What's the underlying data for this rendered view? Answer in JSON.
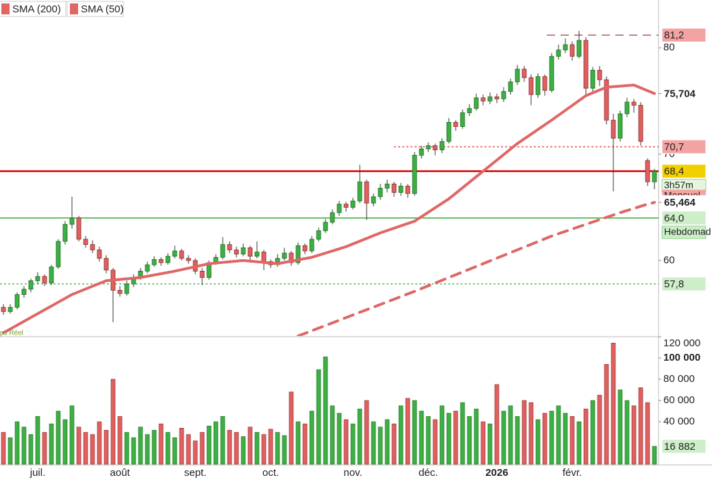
{
  "chart_data": {
    "type": "candlestick",
    "feed_label": "ps Réel",
    "categories": [
      null,
      null,
      null,
      null,
      null,
      "juil.",
      null,
      null,
      null,
      null,
      null,
      null,
      null,
      null,
      null,
      null,
      null,
      "août",
      null,
      null,
      null,
      null,
      null,
      null,
      null,
      null,
      null,
      null,
      "sept.",
      null,
      null,
      null,
      null,
      null,
      null,
      null,
      null,
      null,
      null,
      "oct.",
      null,
      null,
      null,
      null,
      null,
      null,
      null,
      null,
      null,
      null,
      null,
      "nov.",
      null,
      null,
      null,
      null,
      null,
      null,
      null,
      null,
      null,
      null,
      "déc.",
      null,
      null,
      null,
      null,
      null,
      null,
      null,
      null,
      null,
      "2026",
      null,
      null,
      null,
      null,
      null,
      null,
      null,
      null,
      null,
      null,
      "févr.",
      null,
      null,
      null,
      null,
      null,
      null,
      null,
      null,
      null,
      null,
      null,
      null
    ],
    "ohlc": [
      [
        55.6,
        55.9,
        54.9,
        55.2
      ],
      [
        55.2,
        55.9,
        55.0,
        55.6
      ],
      [
        55.6,
        57.0,
        55.4,
        56.8
      ],
      [
        56.8,
        57.6,
        56.5,
        57.3
      ],
      [
        57.3,
        58.3,
        57.0,
        58.1
      ],
      [
        58.1,
        58.9,
        57.8,
        58.5
      ],
      [
        58.5,
        58.7,
        57.6,
        57.9
      ],
      [
        57.9,
        59.6,
        57.7,
        59.4
      ],
      [
        59.4,
        62.0,
        59.2,
        61.8
      ],
      [
        61.8,
        63.7,
        61.5,
        63.4
      ],
      [
        63.4,
        66.0,
        63.0,
        64.0
      ],
      [
        64.0,
        64.2,
        61.8,
        62.0
      ],
      [
        62.0,
        62.3,
        61.2,
        61.5
      ],
      [
        61.5,
        61.9,
        60.7,
        61.0
      ],
      [
        61.0,
        61.3,
        59.9,
        60.2
      ],
      [
        60.2,
        60.5,
        58.8,
        59.1
      ],
      [
        59.1,
        59.3,
        54.2,
        57.2
      ],
      [
        57.2,
        57.6,
        56.6,
        56.9
      ],
      [
        56.9,
        58.1,
        56.7,
        57.8
      ],
      [
        57.8,
        58.7,
        57.5,
        58.4
      ],
      [
        58.4,
        59.3,
        58.2,
        59.0
      ],
      [
        59.0,
        59.9,
        58.8,
        59.6
      ],
      [
        59.6,
        60.4,
        59.4,
        60.1
      ],
      [
        60.1,
        60.3,
        59.5,
        59.8
      ],
      [
        59.8,
        60.7,
        59.6,
        60.4
      ],
      [
        60.4,
        61.4,
        60.2,
        60.9
      ],
      [
        60.9,
        61.1,
        60.0,
        60.2
      ],
      [
        60.2,
        60.5,
        59.7,
        60.0
      ],
      [
        60.0,
        60.2,
        58.7,
        59.0
      ],
      [
        59.0,
        59.3,
        57.7,
        58.4
      ],
      [
        58.4,
        60.0,
        58.2,
        59.8
      ],
      [
        59.8,
        60.6,
        59.6,
        60.3
      ],
      [
        60.3,
        62.2,
        60.1,
        61.5
      ],
      [
        61.5,
        61.8,
        60.7,
        61.0
      ],
      [
        61.0,
        61.3,
        60.3,
        60.6
      ],
      [
        60.6,
        61.6,
        60.4,
        61.2
      ],
      [
        61.2,
        61.4,
        60.0,
        60.4
      ],
      [
        60.4,
        61.8,
        60.2,
        60.8
      ],
      [
        60.8,
        61.0,
        59.1,
        59.9
      ],
      [
        59.9,
        60.1,
        59.3,
        59.6
      ],
      [
        59.6,
        60.6,
        59.4,
        60.2
      ],
      [
        60.2,
        61.2,
        60.0,
        60.7
      ],
      [
        60.7,
        60.9,
        59.5,
        59.8
      ],
      [
        59.8,
        61.7,
        59.6,
        61.4
      ],
      [
        61.4,
        61.6,
        60.6,
        60.9
      ],
      [
        60.9,
        62.3,
        60.7,
        62.0
      ],
      [
        62.0,
        63.1,
        61.8,
        62.8
      ],
      [
        62.8,
        63.9,
        62.6,
        63.6
      ],
      [
        63.6,
        64.8,
        63.4,
        64.5
      ],
      [
        64.5,
        65.6,
        64.2,
        65.3
      ],
      [
        65.3,
        65.5,
        64.6,
        65.0
      ],
      [
        65.0,
        65.9,
        64.8,
        65.6
      ],
      [
        65.6,
        69.0,
        65.4,
        67.4
      ],
      [
        67.4,
        67.6,
        63.8,
        65.4
      ],
      [
        65.4,
        66.3,
        65.1,
        66.0
      ],
      [
        66.0,
        67.2,
        65.7,
        66.8
      ],
      [
        66.8,
        67.6,
        66.4,
        67.2
      ],
      [
        67.2,
        67.4,
        66.0,
        66.4
      ],
      [
        66.4,
        67.3,
        66.1,
        67.0
      ],
      [
        67.0,
        67.2,
        65.9,
        66.3
      ],
      [
        66.3,
        70.2,
        66.1,
        69.9
      ],
      [
        69.9,
        70.8,
        69.6,
        70.5
      ],
      [
        70.5,
        71.1,
        70.2,
        70.8
      ],
      [
        70.8,
        71.0,
        69.9,
        70.4
      ],
      [
        70.4,
        71.5,
        70.1,
        71.2
      ],
      [
        71.2,
        73.4,
        71.0,
        73.0
      ],
      [
        73.0,
        73.2,
        72.2,
        72.6
      ],
      [
        72.6,
        74.2,
        72.4,
        73.9
      ],
      [
        73.9,
        74.7,
        73.6,
        74.3
      ],
      [
        74.3,
        75.7,
        74.1,
        75.3
      ],
      [
        75.3,
        75.6,
        74.6,
        75.0
      ],
      [
        75.0,
        75.8,
        74.7,
        75.4
      ],
      [
        75.4,
        75.7,
        74.8,
        75.2
      ],
      [
        75.2,
        76.3,
        74.9,
        75.9
      ],
      [
        75.9,
        77.1,
        75.6,
        76.8
      ],
      [
        76.8,
        78.4,
        76.5,
        78.0
      ],
      [
        78.0,
        78.3,
        76.8,
        77.2
      ],
      [
        77.2,
        77.5,
        74.6,
        75.6
      ],
      [
        75.6,
        77.6,
        75.3,
        77.3
      ],
      [
        77.3,
        77.5,
        75.5,
        76.0
      ],
      [
        76.0,
        79.5,
        75.8,
        79.2
      ],
      [
        79.2,
        80.3,
        78.9,
        79.8
      ],
      [
        79.8,
        80.9,
        79.5,
        80.3
      ],
      [
        80.3,
        80.6,
        78.8,
        79.2
      ],
      [
        79.2,
        81.6,
        79.0,
        80.7
      ],
      [
        80.7,
        81.0,
        75.6,
        76.2
      ],
      [
        76.2,
        78.2,
        75.9,
        77.9
      ],
      [
        77.9,
        78.3,
        76.4,
        77.0
      ],
      [
        77.0,
        77.3,
        72.8,
        73.2
      ],
      [
        73.2,
        73.8,
        66.5,
        71.5
      ],
      [
        71.5,
        74.1,
        71.2,
        73.8
      ],
      [
        73.8,
        75.3,
        73.5,
        74.9
      ],
      [
        74.9,
        75.2,
        73.9,
        74.6
      ],
      [
        74.6,
        74.9,
        70.8,
        71.2
      ],
      [
        69.4,
        69.6,
        67.0,
        67.4
      ],
      [
        67.4,
        68.6,
        66.7,
        68.4
      ]
    ],
    "up_color": "#3cb043",
    "down_color": "#e06060",
    "ylim": [
      52.9,
      84.5
    ],
    "yticks": [
      60,
      70,
      80
    ],
    "series": [
      {
        "name": "SMA (200)",
        "color": "#e06666",
        "style": "dashed",
        "x": [
          43,
          60,
          70,
          80,
          90,
          94,
          95
        ],
        "values": [
          52.9,
          57.1,
          59.7,
          62.3,
          64.5,
          65.3,
          65.464
        ]
      },
      {
        "name": "SMA (50)",
        "color": "#e06666",
        "style": "solid",
        "x": [
          0,
          10,
          15,
          20,
          25,
          30,
          35,
          40,
          45,
          50,
          55,
          60,
          65,
          70,
          75,
          80,
          85,
          88,
          92,
          95
        ],
        "values": [
          53.2,
          56.8,
          58.1,
          58.4,
          59.0,
          59.7,
          60.0,
          59.7,
          60.3,
          61.3,
          62.6,
          63.7,
          65.8,
          68.4,
          71.0,
          73.2,
          75.5,
          76.3,
          76.5,
          75.704
        ]
      }
    ],
    "series_labels": [
      {
        "value": 65.464,
        "label": "65,464"
      },
      {
        "value": 75.704,
        "label": "75,704"
      }
    ],
    "levels": [
      {
        "value": 81.2,
        "label": "81,2",
        "color": "#a02020",
        "style": "dashed",
        "label_bg": "#f4a3a3"
      },
      {
        "value": 70.7,
        "label": "70,7",
        "color": "#e03030",
        "style": "dotted",
        "label_bg": "#f4a3a3"
      },
      {
        "value": 68.4,
        "label": "68,4",
        "color": "#dd0000",
        "style": "solid",
        "label_bg": "#f2d000",
        "tags": [
          "3h57m",
          "Mensuel"
        ]
      },
      {
        "value": 64.0,
        "label": "64,0",
        "color": "#3aa83a",
        "style": "solid",
        "label_bg": "#cdeec8",
        "tags": [
          "Hebdomad"
        ]
      },
      {
        "value": 57.8,
        "label": "57,8",
        "color": "#3aa83a",
        "style": "dotted",
        "label_bg": "#cdeec8"
      }
    ],
    "volume": {
      "values": [
        30000,
        25000,
        40000,
        35000,
        28000,
        45000,
        30000,
        38000,
        50000,
        42000,
        55000,
        35000,
        30000,
        28000,
        40000,
        32000,
        80000,
        45000,
        30000,
        25000,
        35000,
        28000,
        32000,
        38000,
        30000,
        25000,
        34000,
        28000,
        22000,
        30000,
        36000,
        40000,
        45000,
        32000,
        30000,
        26000,
        35000,
        30000,
        28000,
        33000,
        30000,
        27000,
        68000,
        40000,
        38000,
        50000,
        89000,
        101000,
        55000,
        48000,
        42000,
        38000,
        52000,
        60000,
        40000,
        35000,
        42000,
        38000,
        55000,
        62000,
        60000,
        50000,
        45000,
        42000,
        55000,
        48000,
        50000,
        58000,
        45000,
        52000,
        40000,
        38000,
        75000,
        50000,
        55000,
        45000,
        60000,
        58000,
        42000,
        48000,
        50000,
        55000,
        48000,
        45000,
        40000,
        52000,
        60000,
        65000,
        94000,
        114000,
        70000,
        60000,
        55000,
        72000,
        58000,
        16882
      ],
      "value_labels": [
        null,
        null,
        null,
        null,
        null,
        null,
        null,
        null,
        null,
        null,
        null,
        null,
        null,
        null,
        null,
        null,
        null,
        null,
        null,
        null,
        null,
        null,
        null,
        null,
        null,
        null,
        null,
        null,
        null,
        null,
        null,
        null,
        null,
        null,
        null,
        null,
        null,
        null,
        null,
        null,
        null,
        null,
        null,
        null,
        null,
        null,
        null,
        null,
        null,
        null,
        null,
        null,
        null,
        null,
        null,
        null,
        null,
        null,
        null,
        null,
        null,
        null,
        null,
        null,
        null,
        null,
        null,
        null,
        null,
        null,
        null,
        null,
        null,
        null,
        null,
        null,
        null,
        null,
        null,
        null,
        null,
        null,
        null,
        null,
        null,
        null,
        null,
        null,
        null,
        null,
        null,
        null,
        null,
        null,
        null,
        "16 882"
      ],
      "ylim": [
        0,
        120000
      ],
      "yticks": [
        {
          "value": 40000,
          "label": "40 000"
        },
        {
          "value": 60000,
          "label": "60 000"
        },
        {
          "value": 80000,
          "label": "80 000"
        },
        {
          "value": 100000,
          "label": "100 000"
        },
        {
          "value": 120000,
          "label": "120 000"
        }
      ]
    }
  }
}
